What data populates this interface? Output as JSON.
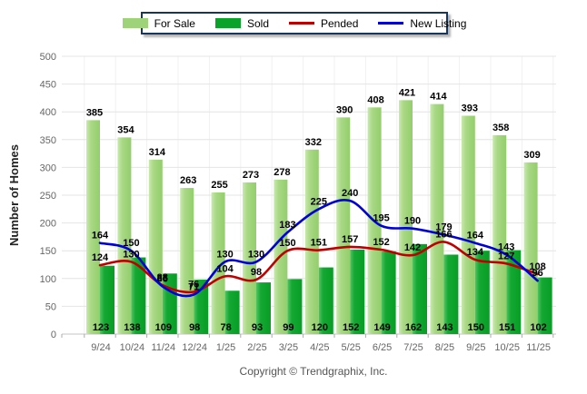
{
  "legend": {
    "items": [
      {
        "label": "For Sale",
        "type": "bar",
        "color": "#9ED379"
      },
      {
        "label": "Sold",
        "type": "bar",
        "color": "#0AA228"
      },
      {
        "label": "Pended",
        "type": "line",
        "color": "#C00000"
      },
      {
        "label": "New Listing",
        "type": "line",
        "color": "#0000D8"
      }
    ]
  },
  "footer": {
    "copyright": "Copyright © Trendgraphix, Inc."
  },
  "chart_data": {
    "type": "bar+line combo",
    "title": "",
    "ylabel": "Number of Homes",
    "xlabel": "",
    "ylim": [
      0,
      500
    ],
    "ytick_step": 50,
    "grid": true,
    "legend_position": "top",
    "categories": [
      "9/24",
      "10/24",
      "11/24",
      "12/24",
      "1/25",
      "2/25",
      "3/25",
      "4/25",
      "5/25",
      "6/25",
      "7/25",
      "8/25",
      "9/25",
      "10/25",
      "11/25"
    ],
    "series": [
      {
        "name": "For Sale",
        "type": "bar",
        "color": "#9ED379",
        "values": [
          385,
          354,
          314,
          263,
          255,
          273,
          278,
          332,
          390,
          408,
          421,
          414,
          393,
          358,
          309
        ]
      },
      {
        "name": "Sold",
        "type": "bar",
        "color": "#0AA228",
        "values": [
          123,
          138,
          109,
          98,
          78,
          93,
          99,
          120,
          152,
          149,
          162,
          143,
          150,
          151,
          102
        ]
      },
      {
        "name": "Pended",
        "type": "line",
        "color": "#C00000",
        "values": [
          124,
          130,
          88,
          76,
          104,
          98,
          150,
          151,
          157,
          152,
          142,
          166,
          134,
          127,
          108
        ]
      },
      {
        "name": "New Listing",
        "type": "line",
        "color": "#0000D8",
        "values": [
          164,
          150,
          86,
          71,
          130,
          130,
          183,
          225,
          240,
          195,
          190,
          179,
          164,
          143,
          96
        ]
      }
    ]
  }
}
